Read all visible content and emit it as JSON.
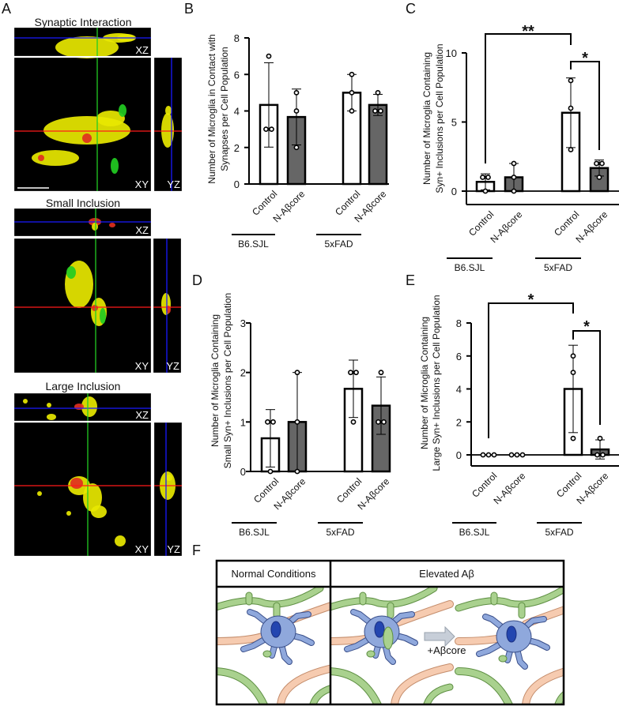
{
  "panel_labels": {
    "a": "A",
    "b": "B",
    "c": "C",
    "d": "D",
    "e": "E",
    "f": "F"
  },
  "panel_a": {
    "rows": [
      {
        "title": "Synaptic Interaction",
        "views": {
          "xz": "XZ",
          "xy": "XY",
          "yz": "YZ"
        }
      },
      {
        "title": "Small Inclusion",
        "views": {
          "xz": "XZ",
          "xy": "XY",
          "yz": "YZ"
        }
      },
      {
        "title": "Large Inclusion",
        "views": {
          "xz": "XZ",
          "xy": "XY",
          "yz": "YZ"
        }
      }
    ],
    "colors": {
      "background": "#000000",
      "synapse": "#e8e800",
      "microglia": "#22cc22",
      "overlap": "#e03020",
      "xz_line": "#1a1aff",
      "xy_line": "#ff1a1a",
      "y_line": "#22cc22"
    }
  },
  "chart_data": [
    {
      "panel": "B",
      "type": "bar",
      "ylabel": [
        "Number of Microglia in Contact with",
        "Synapses per Cell Population"
      ],
      "categories": [
        "Control",
        "N-Aβcore",
        "Control",
        "N-Aβcore"
      ],
      "groups": [
        "B6.SJL",
        "5xFAD"
      ],
      "values": [
        4.33,
        3.67,
        5.0,
        4.33
      ],
      "sd": [
        2.31,
        1.53,
        1.0,
        0.58
      ],
      "points": [
        [
          7,
          3,
          3
        ],
        [
          5,
          4,
          2
        ],
        [
          6,
          5,
          4
        ],
        [
          5,
          4,
          4
        ]
      ],
      "ylim": [
        0,
        8
      ],
      "yticks": [
        0,
        2,
        4,
        6,
        8
      ],
      "bar_colors": [
        "#ffffff",
        "#666666",
        "#ffffff",
        "#666666"
      ],
      "significance": []
    },
    {
      "panel": "C",
      "type": "bar",
      "ylabel": [
        "Number of Microglia Containing",
        "Syn+ Inclusions per Cell Population"
      ],
      "categories": [
        "Control",
        "N-Aβcore",
        "Control",
        "N-Aβcore"
      ],
      "groups": [
        "B6.SJL",
        "5xFAD"
      ],
      "values": [
        0.67,
        1.0,
        5.67,
        1.67
      ],
      "sd": [
        0.58,
        1.0,
        2.52,
        0.58
      ],
      "points": [
        [
          1,
          1,
          0
        ],
        [
          2,
          1,
          0
        ],
        [
          8,
          6,
          3
        ],
        [
          2,
          2,
          1
        ]
      ],
      "ylim": [
        -1,
        10
      ],
      "yticks": [
        0,
        5,
        10
      ],
      "bar_colors": [
        "#ffffff",
        "#666666",
        "#ffffff",
        "#666666"
      ],
      "significance": [
        {
          "from": 0,
          "to": 2,
          "label": "**"
        },
        {
          "from": 2,
          "to": 3,
          "label": "*"
        }
      ]
    },
    {
      "panel": "D",
      "type": "bar",
      "ylabel": [
        "Number of Microglia Containing",
        "Small Syn+ Inclusions per Cell Population"
      ],
      "categories": [
        "Control",
        "N-Aβcore",
        "Control",
        "N-Aβcore"
      ],
      "groups": [
        "B6.SJL",
        "5xFAD"
      ],
      "values": [
        0.67,
        1.0,
        1.67,
        1.33
      ],
      "sd": [
        0.58,
        1.0,
        0.58,
        0.58
      ],
      "points": [
        [
          1,
          1,
          0
        ],
        [
          2,
          1,
          0
        ],
        [
          2,
          2,
          1
        ],
        [
          2,
          1,
          1
        ]
      ],
      "ylim": [
        0,
        3
      ],
      "yticks": [
        0,
        1,
        2,
        3
      ],
      "bar_colors": [
        "#ffffff",
        "#666666",
        "#ffffff",
        "#666666"
      ],
      "significance": []
    },
    {
      "panel": "E",
      "type": "bar",
      "ylabel": [
        "Number of Microglia Containing",
        "Large Syn+ Inclusions per Cell Population"
      ],
      "categories": [
        "Control",
        "N-Aβcore",
        "Control",
        "N-Aβcore"
      ],
      "groups": [
        "B6.SJL",
        "5xFAD"
      ],
      "values": [
        0,
        0,
        4.0,
        0.33
      ],
      "sd": [
        0,
        0,
        2.65,
        0.58
      ],
      "points": [
        [
          0,
          0,
          0
        ],
        [
          0,
          0,
          0
        ],
        [
          6,
          5,
          1
        ],
        [
          1,
          0,
          0
        ]
      ],
      "ylim": [
        -0.5,
        8
      ],
      "yticks": [
        0,
        2,
        4,
        6,
        8
      ],
      "bar_colors": [
        "#ffffff",
        "#666666",
        "#ffffff",
        "#666666"
      ],
      "significance": [
        {
          "from": 0,
          "to": 2,
          "label": "*"
        },
        {
          "from": 2,
          "to": 3,
          "label": "*"
        }
      ]
    }
  ],
  "panel_f": {
    "headers": [
      "Normal Conditions",
      "Elevated Aβ"
    ],
    "arrow_label": "+Aβcore",
    "colors": {
      "microglia": "#8fa8dc",
      "nucleus": "#2346b0",
      "synapse_green": "#a9d18e",
      "synapse_peach": "#f6cbb0",
      "arrow": "#c7ced8"
    }
  }
}
